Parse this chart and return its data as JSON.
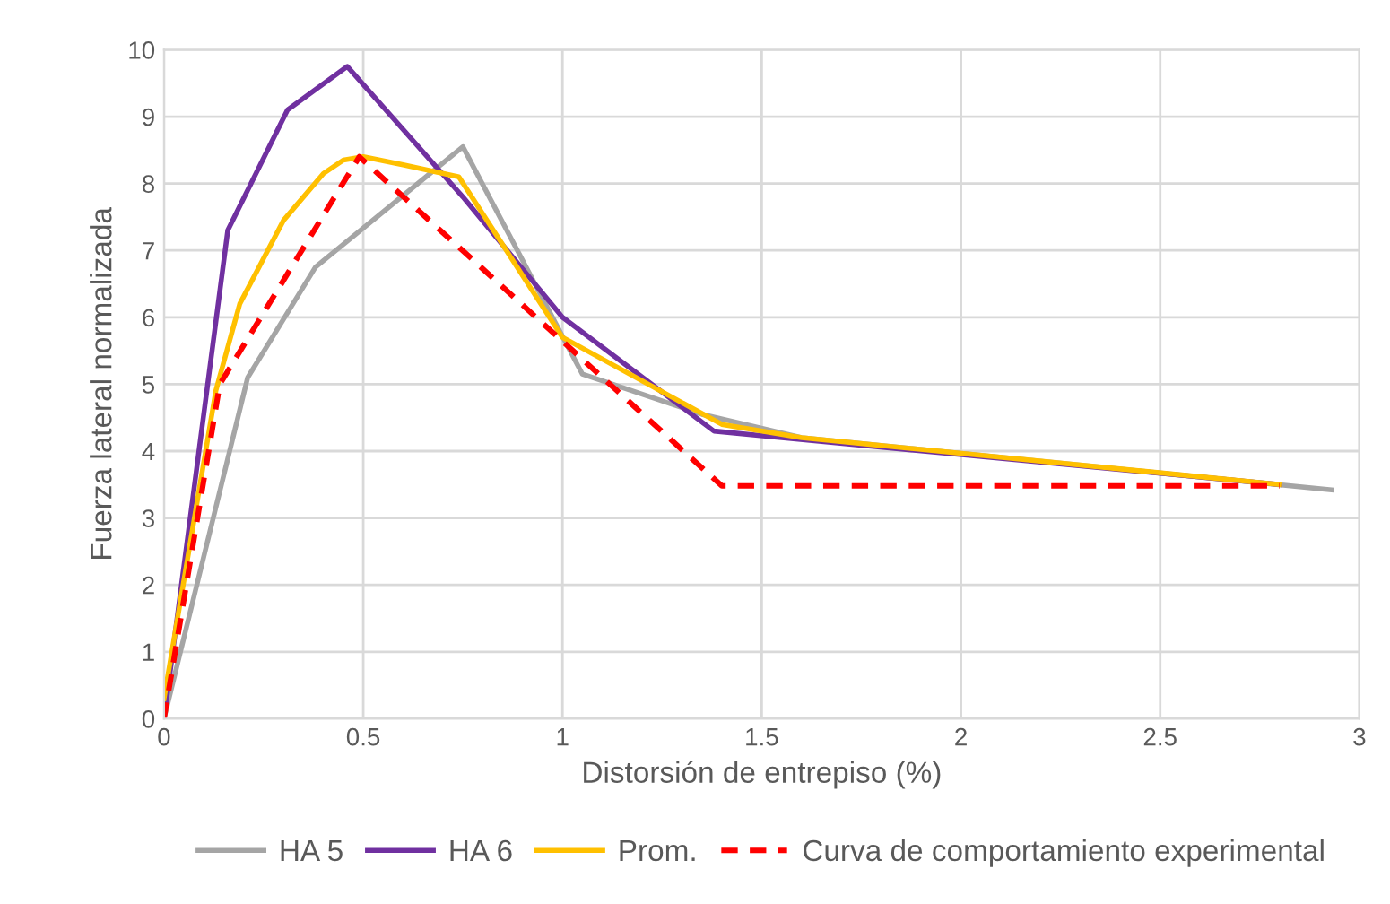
{
  "chart_data": {
    "type": "line",
    "xlabel": "Distorsión de entrepiso (%)",
    "ylabel": "Fuerza lateral normalizada",
    "xlim": [
      0,
      3
    ],
    "xticks": [
      0,
      0.5,
      1,
      1.5,
      2,
      2.5,
      3
    ],
    "ylim": [
      0,
      10
    ],
    "yticks": [
      0,
      1,
      2,
      3,
      4,
      5,
      6,
      7,
      8,
      9,
      10
    ],
    "grid": true,
    "legend": "bottom",
    "series": [
      {
        "name": "HA 5",
        "color": "#a5a5a5",
        "x": [
          0,
          0.21,
          0.38,
          0.75,
          1.05,
          1.35,
          1.6,
          2.93
        ],
        "values": [
          0,
          5.1,
          6.75,
          8.55,
          5.15,
          4.55,
          4.2,
          3.42
        ]
      },
      {
        "name": "HA 6",
        "color": "#7030a0",
        "x": [
          0,
          0.16,
          0.31,
          0.46,
          0.75,
          1.0,
          1.38,
          1.55,
          2.8
        ],
        "values": [
          0,
          7.3,
          9.1,
          9.75,
          7.8,
          6.0,
          4.3,
          4.2,
          3.5
        ]
      },
      {
        "name": "Prom.",
        "color": "#ffc000",
        "x": [
          0,
          0.13,
          0.19,
          0.3,
          0.4,
          0.45,
          0.5,
          0.6,
          0.74,
          1.0,
          1.4,
          1.6,
          2.8
        ],
        "values": [
          0.3,
          4.9,
          6.2,
          7.45,
          8.15,
          8.35,
          8.4,
          8.28,
          8.1,
          5.7,
          4.4,
          4.2,
          3.5
        ]
      },
      {
        "name": "Curva de comportamiento experimental",
        "color": "#ff0000",
        "line_style": "dashed",
        "x": [
          0,
          0.14,
          0.49,
          1.4,
          2.8
        ],
        "values": [
          0,
          5.0,
          8.4,
          3.48,
          3.48
        ]
      }
    ]
  }
}
